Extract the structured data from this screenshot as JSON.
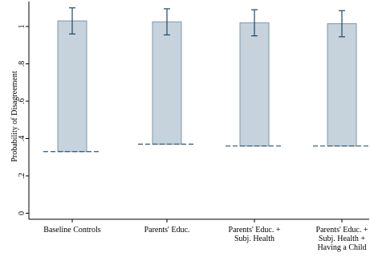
{
  "chart_data": {
    "type": "bar",
    "title": "",
    "xlabel": "",
    "ylabel": "Probability of Disagreement",
    "ylim": [
      0,
      1.1
    ],
    "y_ticks": [
      0,
      0.2,
      0.4,
      0.6,
      0.8,
      1
    ],
    "y_tick_labels": [
      "0",
      ".2",
      ".4",
      ".6",
      ".8",
      "1"
    ],
    "categories": [
      [
        "Baseline Controls"
      ],
      [
        "Parents' Educ."
      ],
      [
        "Parents' Educ. +",
        "Subj. Health"
      ],
      [
        "Parents' Educ. +",
        "Subj. Health +",
        "Having a Child"
      ]
    ],
    "bars": [
      {
        "base": 0.33,
        "value": 1.03,
        "ci_low": 0.96,
        "ci_high": 1.1
      },
      {
        "base": 0.37,
        "value": 1.025,
        "ci_low": 0.955,
        "ci_high": 1.095
      },
      {
        "base": 0.36,
        "value": 1.02,
        "ci_low": 0.95,
        "ci_high": 1.09
      },
      {
        "base": 0.36,
        "value": 1.015,
        "ci_low": 0.945,
        "ci_high": 1.085
      }
    ],
    "grid": false,
    "legend": "none",
    "colors": {
      "bar_fill": "#c6d3dc",
      "bar_stroke": "#7d97aa",
      "dash": "#2e5574",
      "errorbar": "#1f4866",
      "axis": "#000000"
    }
  }
}
